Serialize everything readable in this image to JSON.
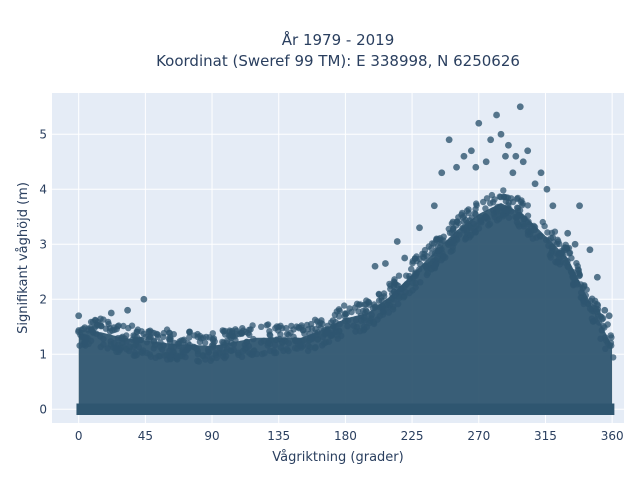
{
  "chart_data": {
    "type": "scatter",
    "title": [
      "År 1979 - 2019",
      "Koordinat (Sweref 99 TM): E 338998, N 6250626"
    ],
    "xlabel": "Vågriktning (grader)",
    "ylabel": "Signifikant våghöjd (m)",
    "xlim": [
      -18,
      368
    ],
    "ylim": [
      -0.25,
      5.75
    ],
    "xticks": [
      0,
      45,
      90,
      135,
      180,
      225,
      270,
      315,
      360
    ],
    "yticks": [
      0,
      1,
      2,
      3,
      4,
      5
    ],
    "grid": true,
    "marker_color": "#2f5670",
    "background": "#e5ecf6",
    "envelope_profile": {
      "x": [
        0,
        15,
        30,
        45,
        60,
        90,
        120,
        150,
        165,
        180,
        195,
        210,
        225,
        240,
        255,
        270,
        285,
        300,
        315,
        330,
        345,
        360
      ],
      "ymax": [
        1.5,
        1.45,
        1.35,
        1.3,
        1.25,
        1.2,
        1.35,
        1.35,
        1.5,
        1.7,
        1.8,
        2.1,
        2.5,
        2.9,
        3.3,
        3.6,
        3.8,
        3.6,
        3.2,
        2.8,
        2.0,
        1.2
      ]
    },
    "extreme_points": [
      {
        "x": 44,
        "y": 2.0
      },
      {
        "x": 22,
        "y": 1.75
      },
      {
        "x": 0,
        "y": 1.7
      },
      {
        "x": 33,
        "y": 1.8
      },
      {
        "x": 200,
        "y": 2.6
      },
      {
        "x": 207,
        "y": 2.65
      },
      {
        "x": 215,
        "y": 3.05
      },
      {
        "x": 220,
        "y": 2.75
      },
      {
        "x": 230,
        "y": 3.3
      },
      {
        "x": 240,
        "y": 3.7
      },
      {
        "x": 245,
        "y": 4.3
      },
      {
        "x": 250,
        "y": 4.9
      },
      {
        "x": 255,
        "y": 4.4
      },
      {
        "x": 260,
        "y": 4.6
      },
      {
        "x": 265,
        "y": 4.7
      },
      {
        "x": 268,
        "y": 4.4
      },
      {
        "x": 270,
        "y": 5.2
      },
      {
        "x": 275,
        "y": 4.5
      },
      {
        "x": 278,
        "y": 4.9
      },
      {
        "x": 282,
        "y": 5.35
      },
      {
        "x": 285,
        "y": 5.0
      },
      {
        "x": 288,
        "y": 4.6
      },
      {
        "x": 290,
        "y": 4.8
      },
      {
        "x": 293,
        "y": 4.3
      },
      {
        "x": 295,
        "y": 4.6
      },
      {
        "x": 298,
        "y": 5.5
      },
      {
        "x": 300,
        "y": 4.5
      },
      {
        "x": 303,
        "y": 4.7
      },
      {
        "x": 308,
        "y": 4.1
      },
      {
        "x": 312,
        "y": 4.3
      },
      {
        "x": 316,
        "y": 4.0
      },
      {
        "x": 320,
        "y": 3.7
      },
      {
        "x": 330,
        "y": 3.2
      },
      {
        "x": 335,
        "y": 3.0
      },
      {
        "x": 338,
        "y": 3.7
      },
      {
        "x": 345,
        "y": 2.9
      },
      {
        "x": 350,
        "y": 2.4
      },
      {
        "x": 355,
        "y": 1.8
      },
      {
        "x": 358,
        "y": 1.7
      }
    ]
  }
}
